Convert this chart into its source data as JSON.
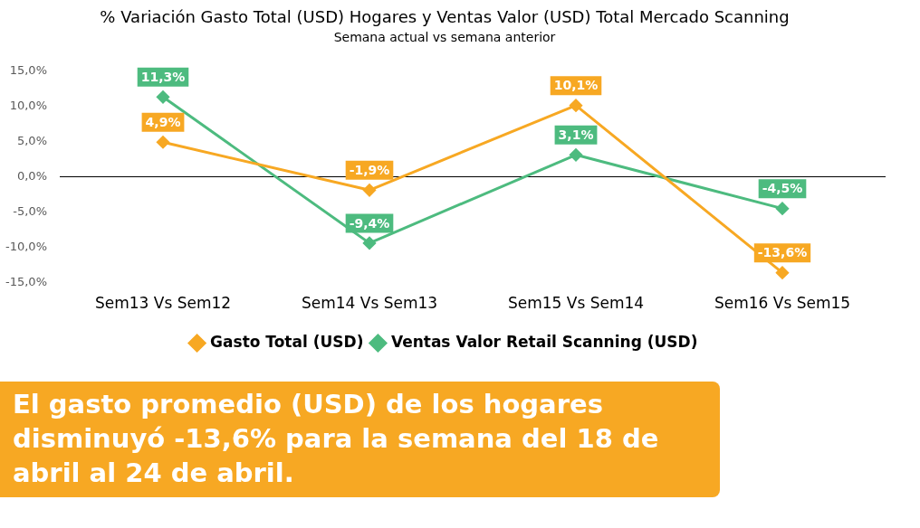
{
  "chart_data": {
    "type": "line",
    "title": "% Variación Gasto Total (USD) Hogares y Ventas Valor (USD) Total Mercado Scanning",
    "subtitle": "Semana actual vs semana anterior",
    "categories": [
      "Sem13 Vs Sem12",
      "Sem14 Vs Sem13",
      "Sem15 Vs Sem14",
      "Sem16 Vs Sem15"
    ],
    "series": [
      {
        "name": "Gasto Total (USD)",
        "color": "#f7a823",
        "values": [
          4.9,
          -1.9,
          10.1,
          -13.6
        ],
        "value_labels": [
          "4,9%",
          "-1,9%",
          "10,1%",
          "-13,6%"
        ]
      },
      {
        "name": "Ventas Valor Retail Scanning (USD)",
        "color": "#4dbb7f",
        "values": [
          11.3,
          -9.4,
          3.1,
          -4.5
        ],
        "value_labels": [
          "11,3%",
          "-9,4%",
          "3,1%",
          "-4,5%"
        ]
      }
    ],
    "ylim": [
      -15,
      15
    ],
    "yticks": [
      {
        "value": -15,
        "label": "-15,0%"
      },
      {
        "value": -10,
        "label": "-10,0%"
      },
      {
        "value": -5,
        "label": "-5,0%"
      },
      {
        "value": 0,
        "label": "0,0%"
      },
      {
        "value": 5,
        "label": "5,0%"
      },
      {
        "value": 10,
        "label": "10,0%"
      },
      {
        "value": 15,
        "label": "15,0%"
      }
    ],
    "grid": false,
    "legend": "bottom",
    "marker": "diamond",
    "line_style": "solid",
    "ref_lines": [
      {
        "axis": "y",
        "value": 0,
        "color": "#000000"
      }
    ],
    "annotations": [
      "El gasto promedio (USD) de los hogares disminuyó -13,6% para la semana del 18 de abril al 24 de abril."
    ]
  }
}
